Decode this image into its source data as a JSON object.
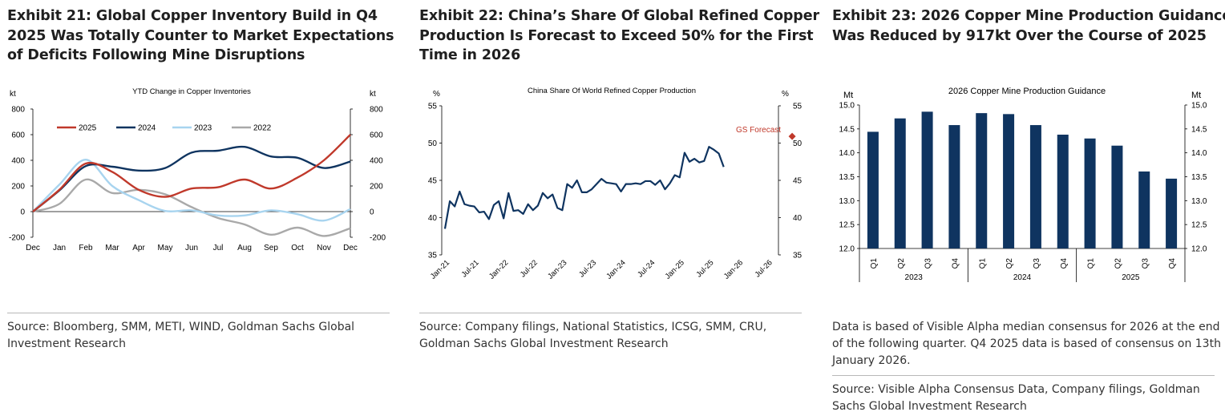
{
  "exhibits": [
    {
      "title_lines": [
        "Exhibit 21: Global Copper Inventory Build in Q4",
        "2025 Was Totally Counter to Market Expectations",
        "of Deficits Following Mine Disruptions"
      ],
      "source_lines": [
        "Source: Bloomberg, SMM, METI, WIND, Goldman Sachs Global",
        "Investment Research"
      ]
    },
    {
      "title_lines": [
        "Exhibit 22: China’s Share Of Global Refined Copper",
        "Production Is Forecast to Exceed 50% for the First",
        "Time in 2026"
      ],
      "source_lines": [
        "Source: Company filings, National Statistics, ICSG, SMM, CRU,",
        "Goldman Sachs Global Investment Research"
      ]
    },
    {
      "title_lines": [
        "Exhibit 23: 2026 Copper Mine Production Guidance",
        "Was Reduced by 917kt Over the Course of 2025"
      ],
      "note_lines": [
        "Data is based of Visible Alpha median consensus for 2026 at the end",
        "of the following quarter. Q4 2025 data is based of consensus on 13th",
        "January 2026."
      ],
      "source_lines": [
        "Source: Visible Alpha Consensus Data, Company filings, Goldman",
        "Sachs Global Investment Research"
      ]
    }
  ],
  "chart_data": [
    {
      "type": "line",
      "title": "YTD Change in Copper Inventories",
      "ylabel": "kt",
      "ylabel_right": "kt",
      "ylim": [
        -200,
        800
      ],
      "yticks": [
        -200,
        0,
        200,
        400,
        600,
        800
      ],
      "categories": [
        "Dec",
        "Jan",
        "Feb",
        "Mar",
        "Apr",
        "May",
        "Jun",
        "Jul",
        "Aug",
        "Sep",
        "Oct",
        "Nov",
        "Dec"
      ],
      "legend_position": "top",
      "series": [
        {
          "name": "2025",
          "color": "#c0392b",
          "values": [
            0,
            170,
            375,
            310,
            170,
            115,
            180,
            190,
            250,
            180,
            265,
            400,
            600
          ]
        },
        {
          "name": "2024",
          "color": "#0f3460",
          "values": [
            0,
            165,
            355,
            350,
            320,
            340,
            460,
            475,
            505,
            430,
            420,
            340,
            390
          ]
        },
        {
          "name": "2023",
          "color": "#a8d4ef",
          "values": [
            0,
            210,
            405,
            200,
            90,
            5,
            10,
            -30,
            -30,
            10,
            -20,
            -70,
            20
          ]
        },
        {
          "name": "2022",
          "color": "#a9a9a9",
          "values": [
            0,
            60,
            250,
            145,
            170,
            135,
            35,
            -50,
            -100,
            -180,
            -125,
            -190,
            -130
          ]
        }
      ]
    },
    {
      "type": "line",
      "title": "China Share Of World Refined Copper Production",
      "ylabel": "%",
      "ylabel_right": "%",
      "ylim": [
        35,
        55
      ],
      "yticks": [
        35,
        40,
        45,
        50,
        55
      ],
      "xtick_labels": [
        "Jan-21",
        "Jul-21",
        "Jan-22",
        "Jul-22",
        "Jan-23",
        "Jul-23",
        "Jan-24",
        "Jul-24",
        "Jan-25",
        "Jul-25",
        "Jan-26",
        "Jul-26"
      ],
      "x_start": "Jan-21",
      "series": [
        {
          "name": "China Share",
          "color": "#0f3460",
          "values": [
            38.5,
            42.2,
            41.5,
            43.5,
            41.8,
            41.6,
            41.5,
            40.7,
            40.8,
            39.8,
            41.7,
            42.2,
            39.9,
            43.3,
            40.9,
            41.0,
            40.5,
            41.8,
            41.0,
            41.6,
            43.3,
            42.6,
            43.1,
            41.3,
            41.0,
            44.5,
            44.0,
            45.0,
            43.4,
            43.4,
            43.8,
            44.5,
            45.2,
            44.7,
            44.6,
            44.5,
            43.5,
            44.5,
            44.5,
            44.6,
            44.5,
            44.9,
            44.9,
            44.4,
            45.0,
            43.8,
            44.6,
            45.7,
            45.4,
            48.7,
            47.5,
            47.9,
            47.4,
            47.6,
            49.5,
            49.1,
            48.6,
            46.8
          ]
        }
      ],
      "forecast": {
        "label": "GS Forecast",
        "x": "Jul-26 + 5 months",
        "month_index": 71,
        "value": 50.9,
        "color": "#c0392b"
      }
    },
    {
      "type": "bar",
      "title": "2026 Copper Mine Production Guidance",
      "ylabel": "Mt",
      "ylabel_right": "Mt",
      "ylim": [
        12.0,
        15.0
      ],
      "yticks": [
        12.0,
        12.5,
        13.0,
        13.5,
        14.0,
        14.5,
        15.0
      ],
      "categories": [
        "Q1",
        "Q2",
        "Q3",
        "Q4",
        "Q1",
        "Q2",
        "Q3",
        "Q4",
        "Q1",
        "Q2",
        "Q3",
        "Q4"
      ],
      "groups": [
        "2023",
        "2024",
        "2025"
      ],
      "color": "#0f3460",
      "values": [
        14.44,
        14.72,
        14.86,
        14.58,
        14.83,
        14.81,
        14.58,
        14.38,
        14.3,
        14.15,
        13.61,
        13.46
      ]
    }
  ]
}
